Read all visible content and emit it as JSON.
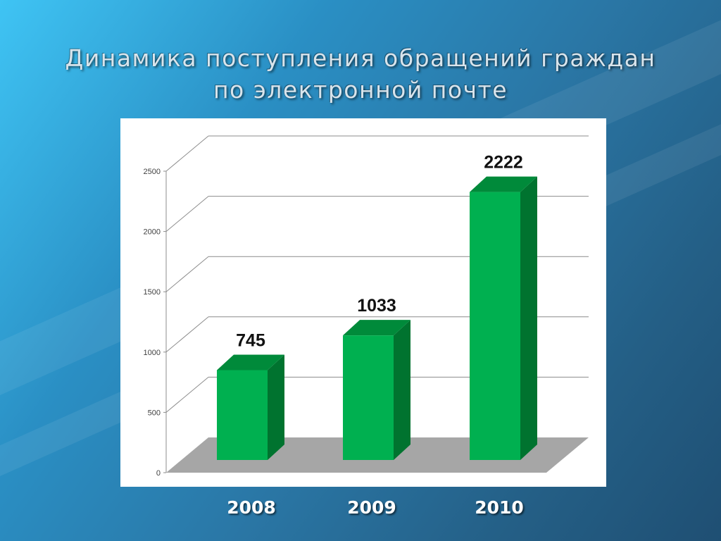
{
  "slide": {
    "title_line1": "Динамика поступления обращений граждан",
    "title_line2": "по электронной почте"
  },
  "colors": {
    "bar_front": "#00b050",
    "bar_side": "#00732f",
    "bar_top": "#008a3a",
    "floor": "#a6a6a6",
    "gridline": "#8c8c8c"
  },
  "chart_data": {
    "type": "bar",
    "categories": [
      "2008",
      "2009",
      "2010"
    ],
    "values": [
      745,
      1033,
      2222
    ],
    "data_labels": [
      "745",
      "1033",
      "2222"
    ],
    "y_ticks": [
      "0",
      "500",
      "1000",
      "1500",
      "2000",
      "2500"
    ],
    "ylim": [
      0,
      2500
    ],
    "grid": true,
    "three_d": true,
    "title": "",
    "xlabel": "",
    "ylabel": ""
  }
}
